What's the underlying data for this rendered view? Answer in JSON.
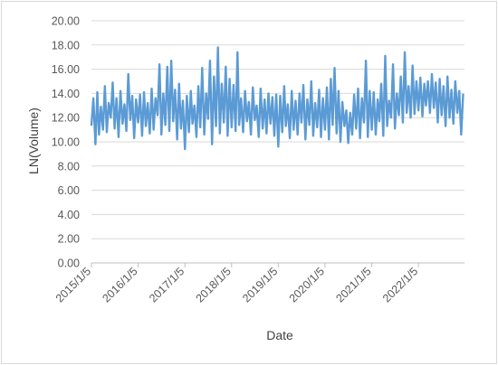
{
  "chart_data": {
    "type": "line",
    "title": "",
    "xlabel": "Date",
    "ylabel": "LN(Volume)",
    "ylim": [
      0,
      20
    ],
    "y_ticks": [
      "0.00",
      "2.00",
      "4.00",
      "6.00",
      "8.00",
      "10.00",
      "12.00",
      "14.00",
      "16.00",
      "18.00",
      "20.00"
    ],
    "x_range": [
      "2015-01-05",
      "2022-12-31"
    ],
    "x_ticks": [
      "2015/1/5",
      "2016/1/5",
      "2017/1/5",
      "2018/1/5",
      "2019/1/5",
      "2020/1/5",
      "2021/1/5",
      "2022/1/5"
    ],
    "grid": "horizontal",
    "legend": "none",
    "series_color": "#5b9bd5",
    "series": [
      {
        "values": [
          [
            "2015-01-05",
            11.4
          ],
          [
            "2015-01-20",
            13.6
          ],
          [
            "2015-02-05",
            9.8
          ],
          [
            "2015-02-20",
            14.1
          ],
          [
            "2015-03-05",
            10.6
          ],
          [
            "2015-03-20",
            12.9
          ],
          [
            "2015-04-05",
            11.0
          ],
          [
            "2015-04-20",
            14.6
          ],
          [
            "2015-05-05",
            10.8
          ],
          [
            "2015-05-20",
            13.2
          ],
          [
            "2015-06-05",
            12.0
          ],
          [
            "2015-06-20",
            14.9
          ],
          [
            "2015-07-05",
            11.1
          ],
          [
            "2015-07-20",
            13.6
          ],
          [
            "2015-08-05",
            10.4
          ],
          [
            "2015-08-20",
            14.2
          ],
          [
            "2015-09-05",
            11.5
          ],
          [
            "2015-09-20",
            13.1
          ],
          [
            "2015-10-05",
            10.9
          ],
          [
            "2015-10-20",
            15.6
          ],
          [
            "2015-11-05",
            11.8
          ],
          [
            "2015-11-20",
            13.8
          ],
          [
            "2015-12-05",
            10.3
          ],
          [
            "2015-12-20",
            13.5
          ],
          [
            "2016-01-05",
            11.6
          ],
          [
            "2016-01-20",
            13.9
          ],
          [
            "2016-02-05",
            10.5
          ],
          [
            "2016-02-20",
            14.1
          ],
          [
            "2016-03-05",
            11.3
          ],
          [
            "2016-03-20",
            13.2
          ],
          [
            "2016-04-05",
            10.7
          ],
          [
            "2016-04-20",
            14.4
          ],
          [
            "2016-05-05",
            11.0
          ],
          [
            "2016-05-20",
            13.6
          ],
          [
            "2016-06-05",
            12.2
          ],
          [
            "2016-06-20",
            16.4
          ],
          [
            "2016-07-05",
            10.6
          ],
          [
            "2016-07-20",
            14.0
          ],
          [
            "2016-08-05",
            11.4
          ],
          [
            "2016-08-20",
            16.2
          ],
          [
            "2016-09-05",
            10.9
          ],
          [
            "2016-09-20",
            16.7
          ],
          [
            "2016-10-05",
            11.7
          ],
          [
            "2016-10-20",
            14.3
          ],
          [
            "2016-11-05",
            10.2
          ],
          [
            "2016-11-20",
            14.8
          ],
          [
            "2016-12-05",
            11.1
          ],
          [
            "2016-12-20",
            13.4
          ],
          [
            "2017-01-05",
            9.4
          ],
          [
            "2017-01-20",
            13.8
          ],
          [
            "2017-02-05",
            10.8
          ],
          [
            "2017-02-20",
            14.2
          ],
          [
            "2017-03-05",
            11.5
          ],
          [
            "2017-03-20",
            13.0
          ],
          [
            "2017-04-05",
            10.4
          ],
          [
            "2017-04-20",
            14.6
          ],
          [
            "2017-05-05",
            11.2
          ],
          [
            "2017-05-20",
            16.1
          ],
          [
            "2017-06-05",
            10.6
          ],
          [
            "2017-06-20",
            14.0
          ],
          [
            "2017-07-05",
            11.9
          ],
          [
            "2017-07-20",
            16.7
          ],
          [
            "2017-08-05",
            9.8
          ],
          [
            "2017-08-20",
            15.4
          ],
          [
            "2017-09-05",
            11.3
          ],
          [
            "2017-09-20",
            17.8
          ],
          [
            "2017-10-05",
            10.7
          ],
          [
            "2017-10-20",
            14.8
          ],
          [
            "2017-11-05",
            11.6
          ],
          [
            "2017-11-20",
            16.2
          ],
          [
            "2017-12-05",
            10.5
          ],
          [
            "2017-12-20",
            15.2
          ],
          [
            "2018-01-05",
            11.2
          ],
          [
            "2018-01-20",
            14.7
          ],
          [
            "2018-02-05",
            10.9
          ],
          [
            "2018-02-20",
            17.4
          ],
          [
            "2018-03-05",
            11.4
          ],
          [
            "2018-03-20",
            13.6
          ],
          [
            "2018-04-05",
            10.8
          ],
          [
            "2018-04-20",
            14.2
          ],
          [
            "2018-05-05",
            11.7
          ],
          [
            "2018-05-20",
            13.3
          ],
          [
            "2018-06-05",
            10.6
          ],
          [
            "2018-06-20",
            14.5
          ],
          [
            "2018-07-05",
            11.8
          ],
          [
            "2018-07-20",
            13.0
          ],
          [
            "2018-08-05",
            10.4
          ],
          [
            "2018-08-20",
            14.4
          ],
          [
            "2018-09-05",
            11.1
          ],
          [
            "2018-09-20",
            13.5
          ],
          [
            "2018-10-05",
            10.7
          ],
          [
            "2018-10-20",
            14.0
          ],
          [
            "2018-11-05",
            11.5
          ],
          [
            "2018-11-20",
            13.7
          ],
          [
            "2018-12-05",
            10.5
          ],
          [
            "2018-12-20",
            13.9
          ],
          [
            "2019-01-05",
            9.6
          ],
          [
            "2019-01-20",
            13.8
          ],
          [
            "2019-02-05",
            10.8
          ],
          [
            "2019-02-20",
            14.6
          ],
          [
            "2019-03-05",
            11.3
          ],
          [
            "2019-03-20",
            13.1
          ],
          [
            "2019-04-05",
            10.3
          ],
          [
            "2019-04-20",
            14.2
          ],
          [
            "2019-05-05",
            11.0
          ],
          [
            "2019-05-20",
            13.4
          ],
          [
            "2019-06-05",
            10.6
          ],
          [
            "2019-06-20",
            14.0
          ],
          [
            "2019-07-05",
            11.6
          ],
          [
            "2019-07-20",
            14.7
          ],
          [
            "2019-08-05",
            10.2
          ],
          [
            "2019-08-20",
            13.5
          ],
          [
            "2019-09-05",
            11.4
          ],
          [
            "2019-09-20",
            15.0
          ],
          [
            "2019-10-05",
            10.5
          ],
          [
            "2019-10-20",
            13.2
          ],
          [
            "2019-11-05",
            11.2
          ],
          [
            "2019-11-20",
            14.3
          ],
          [
            "2019-12-05",
            10.4
          ],
          [
            "2019-12-20",
            13.6
          ],
          [
            "2020-01-05",
            11.0
          ],
          [
            "2020-01-20",
            14.5
          ],
          [
            "2020-02-05",
            10.2
          ],
          [
            "2020-02-20",
            15.2
          ],
          [
            "2020-03-05",
            11.4
          ],
          [
            "2020-03-20",
            16.1
          ],
          [
            "2020-04-05",
            10.7
          ],
          [
            "2020-04-20",
            14.2
          ],
          [
            "2020-05-05",
            10.0
          ],
          [
            "2020-05-20",
            13.3
          ],
          [
            "2020-06-05",
            11.3
          ],
          [
            "2020-06-20",
            12.6
          ],
          [
            "2020-07-05",
            9.9
          ],
          [
            "2020-07-20",
            12.4
          ],
          [
            "2020-08-05",
            10.6
          ],
          [
            "2020-08-20",
            13.9
          ],
          [
            "2020-09-05",
            11.1
          ],
          [
            "2020-09-20",
            14.4
          ],
          [
            "2020-10-05",
            10.3
          ],
          [
            "2020-10-20",
            13.6
          ],
          [
            "2020-11-05",
            11.6
          ],
          [
            "2020-11-20",
            16.7
          ],
          [
            "2020-12-05",
            10.4
          ],
          [
            "2020-12-20",
            14.2
          ],
          [
            "2021-01-05",
            11.0
          ],
          [
            "2021-01-20",
            14.1
          ],
          [
            "2021-02-05",
            10.6
          ],
          [
            "2021-02-20",
            13.5
          ],
          [
            "2021-03-05",
            11.7
          ],
          [
            "2021-03-20",
            14.8
          ],
          [
            "2021-04-05",
            10.5
          ],
          [
            "2021-04-20",
            17.1
          ],
          [
            "2021-05-05",
            11.3
          ],
          [
            "2021-05-20",
            13.4
          ],
          [
            "2021-06-05",
            12.0
          ],
          [
            "2021-06-20",
            16.4
          ],
          [
            "2021-07-05",
            11.1
          ],
          [
            "2021-07-20",
            14.0
          ],
          [
            "2021-08-05",
            12.2
          ],
          [
            "2021-08-20",
            15.4
          ],
          [
            "2021-09-05",
            11.6
          ],
          [
            "2021-09-20",
            17.4
          ],
          [
            "2021-10-05",
            12.4
          ],
          [
            "2021-10-20",
            14.6
          ],
          [
            "2021-11-05",
            12.0
          ],
          [
            "2021-11-20",
            16.3
          ],
          [
            "2021-12-05",
            12.3
          ],
          [
            "2021-12-20",
            15.0
          ],
          [
            "2022-01-05",
            12.6
          ],
          [
            "2022-01-20",
            15.3
          ],
          [
            "2022-02-05",
            12.1
          ],
          [
            "2022-02-20",
            14.8
          ],
          [
            "2022-03-05",
            13.0
          ],
          [
            "2022-03-20",
            15.0
          ],
          [
            "2022-04-05",
            12.4
          ],
          [
            "2022-04-20",
            15.6
          ],
          [
            "2022-05-05",
            12.8
          ],
          [
            "2022-05-20",
            14.9
          ],
          [
            "2022-06-05",
            11.6
          ],
          [
            "2022-06-20",
            15.2
          ],
          [
            "2022-07-05",
            12.2
          ],
          [
            "2022-07-20",
            14.6
          ],
          [
            "2022-08-05",
            11.3
          ],
          [
            "2022-08-20",
            15.4
          ],
          [
            "2022-09-05",
            12.0
          ],
          [
            "2022-09-20",
            14.3
          ],
          [
            "2022-10-05",
            11.5
          ],
          [
            "2022-10-20",
            15.0
          ],
          [
            "2022-11-05",
            12.4
          ],
          [
            "2022-11-20",
            14.2
          ],
          [
            "2022-12-05",
            10.6
          ],
          [
            "2022-12-20",
            13.9
          ]
        ]
      }
    ]
  }
}
